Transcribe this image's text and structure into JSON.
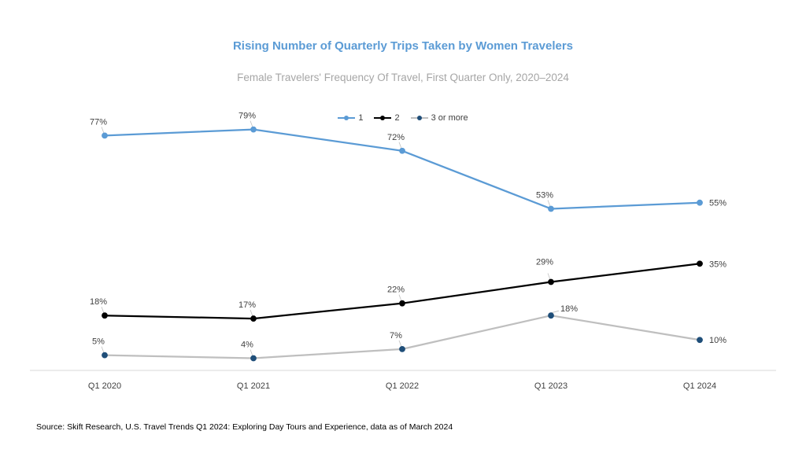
{
  "chart_data": {
    "type": "line",
    "title": "Rising Number of Quarterly Trips Taken by Women Travelers",
    "subtitle": "Female Travelers' Frequency Of Travel, First Quarter Only, 2020–2024",
    "categories": [
      "Q1 2020",
      "Q1 2021",
      "Q1 2022",
      "Q1 2023",
      "Q1 2024"
    ],
    "series": [
      {
        "name": "1",
        "values": [
          77,
          79,
          72,
          53,
          55
        ],
        "labels": [
          "77%",
          "79%",
          "72%",
          "53%",
          "55%"
        ],
        "color": "#5b9bd5",
        "marker_color": "#5b9bd5"
      },
      {
        "name": "2",
        "values": [
          18,
          17,
          22,
          29,
          35
        ],
        "labels": [
          "18%",
          "17%",
          "22%",
          "29%",
          "35%"
        ],
        "color": "#000000",
        "marker_color": "#000000"
      },
      {
        "name": "3 or more",
        "values": [
          5,
          4,
          7,
          18,
          10
        ],
        "labels": [
          "5%",
          "4%",
          "7%",
          "18%",
          "10%"
        ],
        "color": "#bfbfbf",
        "marker_color": "#1f4e79"
      }
    ],
    "ylim": [
      0,
      82
    ],
    "grid": false,
    "legend_position": "top-center",
    "source": "Source: Skift Research, U.S. Travel Trends Q1 2024: Exploring Day Tours and Experience, data as of March 2024"
  }
}
